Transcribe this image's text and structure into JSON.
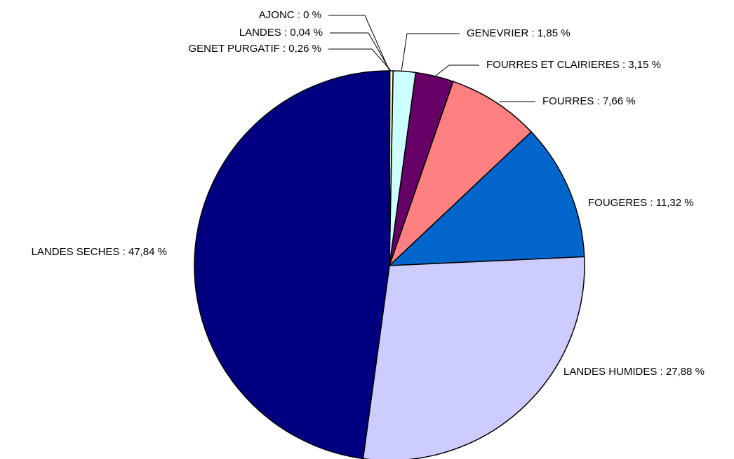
{
  "chart_data": {
    "type": "pie",
    "categories": [
      "AJONC",
      "LANDES",
      "GENET PURGATIF",
      "GENEVRIER",
      "FOURRES ET CLAIRIERES",
      "FOURRES",
      "FOUGERES",
      "LANDES HUMIDES",
      "LANDES SECHES"
    ],
    "values": [
      0,
      0.04,
      0.26,
      1.85,
      3.15,
      7.66,
      11.32,
      27.88,
      47.84
    ],
    "value_labels": [
      ": 0 %",
      ": 0,04 %",
      ": 0,26 %",
      ": 1,85 %",
      ": 3,15 %",
      ": 7,66 %",
      ": 11,32 %",
      ": 27,88 %",
      ": 47,84 %"
    ],
    "colors": [
      "#ffffcc",
      "#ffffcc",
      "#ffffcc",
      "#ccffff",
      "#660066",
      "#ff8080",
      "#0066cc",
      "#ccccff",
      "#000080"
    ]
  }
}
